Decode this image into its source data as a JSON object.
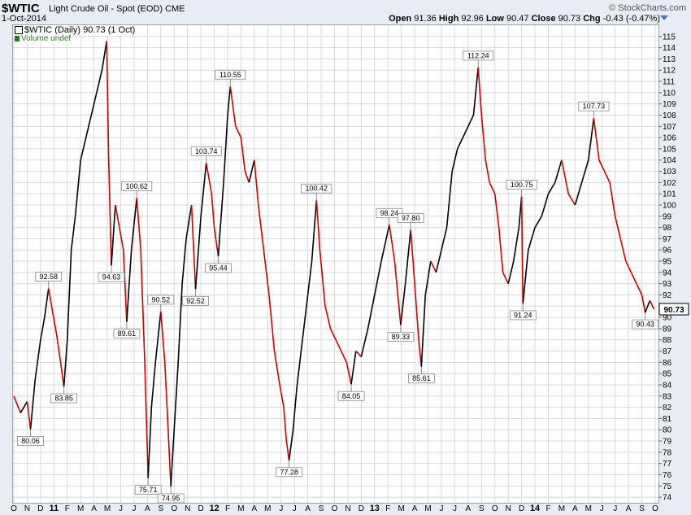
{
  "header": {
    "ticker": "$WTIC",
    "name": "Light Crude Oil - Spot (EOD)",
    "exchange": "CME",
    "date": "1-Oct-2014",
    "brand": "© StockCharts.com",
    "open_label": "Open",
    "open": "91.36",
    "high_label": "High",
    "high": "92.96",
    "low_label": "Low",
    "low": "90.47",
    "close_label": "Close",
    "close": "90.73",
    "chg_label": "Chg",
    "chg": "-0.43 (-0.47%)"
  },
  "legend": {
    "series": "$WTIC (Daily) 90.73 (1 Oct)",
    "volume": "Volume undef"
  },
  "colors": {
    "up": "#000000",
    "down": "#cc0000",
    "grid": "#d4dae2",
    "panel": "#e8edf3"
  },
  "chart_data": {
    "type": "line",
    "title": "$WTIC Light Crude Oil - Spot (EOD) CME",
    "ylim": [
      73.5,
      116
    ],
    "ytick_values": [
      74,
      75,
      76,
      77,
      78,
      79,
      80,
      81,
      82,
      83,
      84,
      85,
      86,
      87,
      88,
      89,
      90,
      91,
      92,
      93,
      94,
      95,
      96,
      97,
      98,
      99,
      100,
      101,
      102,
      103,
      104,
      105,
      106,
      107,
      108,
      109,
      110,
      111,
      112,
      113,
      114,
      115
    ],
    "x_ticks": [
      {
        "t": 0.0,
        "label": "O",
        "year": false
      },
      {
        "t": 1.0,
        "label": "N",
        "year": false
      },
      {
        "t": 2.0,
        "label": "D",
        "year": false
      },
      {
        "t": 3.0,
        "label": "11",
        "year": true
      },
      {
        "t": 4.0,
        "label": "F",
        "year": false
      },
      {
        "t": 5.0,
        "label": "M",
        "year": false
      },
      {
        "t": 6.0,
        "label": "A",
        "year": false
      },
      {
        "t": 7.0,
        "label": "M",
        "year": false
      },
      {
        "t": 8.0,
        "label": "J",
        "year": false
      },
      {
        "t": 9.0,
        "label": "J",
        "year": false
      },
      {
        "t": 10.0,
        "label": "A",
        "year": false
      },
      {
        "t": 11.0,
        "label": "S",
        "year": false
      },
      {
        "t": 12.0,
        "label": "O",
        "year": false
      },
      {
        "t": 13.0,
        "label": "N",
        "year": false
      },
      {
        "t": 14.0,
        "label": "D",
        "year": false
      },
      {
        "t": 15.0,
        "label": "12",
        "year": true
      },
      {
        "t": 16.0,
        "label": "F",
        "year": false
      },
      {
        "t": 17.0,
        "label": "M",
        "year": false
      },
      {
        "t": 18.0,
        "label": "A",
        "year": false
      },
      {
        "t": 19.0,
        "label": "M",
        "year": false
      },
      {
        "t": 20.0,
        "label": "J",
        "year": false
      },
      {
        "t": 21.0,
        "label": "J",
        "year": false
      },
      {
        "t": 22.0,
        "label": "A",
        "year": false
      },
      {
        "t": 23.0,
        "label": "S",
        "year": false
      },
      {
        "t": 24.0,
        "label": "O",
        "year": false
      },
      {
        "t": 25.0,
        "label": "N",
        "year": false
      },
      {
        "t": 26.0,
        "label": "D",
        "year": false
      },
      {
        "t": 27.0,
        "label": "13",
        "year": true
      },
      {
        "t": 28.0,
        "label": "F",
        "year": false
      },
      {
        "t": 29.0,
        "label": "M",
        "year": false
      },
      {
        "t": 30.0,
        "label": "A",
        "year": false
      },
      {
        "t": 31.0,
        "label": "M",
        "year": false
      },
      {
        "t": 32.0,
        "label": "J",
        "year": false
      },
      {
        "t": 33.0,
        "label": "J",
        "year": false
      },
      {
        "t": 34.0,
        "label": "A",
        "year": false
      },
      {
        "t": 35.0,
        "label": "S",
        "year": false
      },
      {
        "t": 36.0,
        "label": "O",
        "year": false
      },
      {
        "t": 37.0,
        "label": "N",
        "year": false
      },
      {
        "t": 38.0,
        "label": "D",
        "year": false
      },
      {
        "t": 39.0,
        "label": "14",
        "year": true
      },
      {
        "t": 40.0,
        "label": "F",
        "year": false
      },
      {
        "t": 41.0,
        "label": "M",
        "year": false
      },
      {
        "t": 42.0,
        "label": "A",
        "year": false
      },
      {
        "t": 43.0,
        "label": "M",
        "year": false
      },
      {
        "t": 44.0,
        "label": "J",
        "year": false
      },
      {
        "t": 45.0,
        "label": "J",
        "year": false
      },
      {
        "t": 46.0,
        "label": "A",
        "year": false
      },
      {
        "t": 47.0,
        "label": "S",
        "year": false
      },
      {
        "t": 48.0,
        "label": "O",
        "year": false
      }
    ],
    "annotations": [
      {
        "t": 1.25,
        "value": 80.06,
        "label": "80.06",
        "pos": "below"
      },
      {
        "t": 2.6,
        "value": 92.58,
        "label": "92.58",
        "pos": "above"
      },
      {
        "t": 3.75,
        "value": 83.85,
        "label": "83.85",
        "pos": "below"
      },
      {
        "t": 6.95,
        "value": 114.6,
        "label": "",
        "pos": "none"
      },
      {
        "t": 7.3,
        "value": 94.63,
        "label": "94.63",
        "pos": "below"
      },
      {
        "t": 8.45,
        "value": 89.61,
        "label": "89.61",
        "pos": "below"
      },
      {
        "t": 9.2,
        "value": 100.62,
        "label": "100.62",
        "pos": "above"
      },
      {
        "t": 10.05,
        "value": 75.71,
        "label": "75.71",
        "pos": "below"
      },
      {
        "t": 11.0,
        "value": 90.52,
        "label": "90.52",
        "pos": "above"
      },
      {
        "t": 11.75,
        "value": 74.95,
        "label": "74.95",
        "pos": "below"
      },
      {
        "t": 13.6,
        "value": 92.52,
        "label": "92.52",
        "pos": "below"
      },
      {
        "t": 14.4,
        "value": 103.74,
        "label": "103.74",
        "pos": "above"
      },
      {
        "t": 15.3,
        "value": 95.44,
        "label": "95.44",
        "pos": "below"
      },
      {
        "t": 16.2,
        "value": 110.55,
        "label": "110.55",
        "pos": "above"
      },
      {
        "t": 20.6,
        "value": 77.28,
        "label": "77.28",
        "pos": "below"
      },
      {
        "t": 22.65,
        "value": 100.42,
        "label": "100.42",
        "pos": "above"
      },
      {
        "t": 25.25,
        "value": 84.05,
        "label": "84.05",
        "pos": "below"
      },
      {
        "t": 28.1,
        "value": 98.24,
        "label": "98.24",
        "pos": "above"
      },
      {
        "t": 28.95,
        "value": 89.33,
        "label": "89.33",
        "pos": "below"
      },
      {
        "t": 29.7,
        "value": 97.8,
        "label": "97.80",
        "pos": "above"
      },
      {
        "t": 30.5,
        "value": 85.61,
        "label": "85.61",
        "pos": "below"
      },
      {
        "t": 34.75,
        "value": 112.24,
        "label": "112.24",
        "pos": "above"
      },
      {
        "t": 38.0,
        "value": 100.75,
        "label": "100.75",
        "pos": "above"
      },
      {
        "t": 38.1,
        "value": 91.24,
        "label": "91.24",
        "pos": "below"
      },
      {
        "t": 43.4,
        "value": 107.73,
        "label": "107.73",
        "pos": "above"
      },
      {
        "t": 47.25,
        "value": 90.43,
        "label": "90.43",
        "pos": "below"
      }
    ],
    "path": [
      [
        0.0,
        83.0
      ],
      [
        0.5,
        81.5
      ],
      [
        1.0,
        82.5
      ],
      [
        1.25,
        80.06
      ],
      [
        1.6,
        84.5
      ],
      [
        2.0,
        88.0
      ],
      [
        2.3,
        90.0
      ],
      [
        2.6,
        92.58
      ],
      [
        2.9,
        90.5
      ],
      [
        3.2,
        88.5
      ],
      [
        3.5,
        86.0
      ],
      [
        3.75,
        83.85
      ],
      [
        4.0,
        88.0
      ],
      [
        4.3,
        96.0
      ],
      [
        4.6,
        99.0
      ],
      [
        5.0,
        104.0
      ],
      [
        5.4,
        106.0
      ],
      [
        5.8,
        108.0
      ],
      [
        6.2,
        110.0
      ],
      [
        6.6,
        112.0
      ],
      [
        6.95,
        114.6
      ],
      [
        7.1,
        104.0
      ],
      [
        7.3,
        94.63
      ],
      [
        7.6,
        100.0
      ],
      [
        7.9,
        98.0
      ],
      [
        8.2,
        96.0
      ],
      [
        8.45,
        89.61
      ],
      [
        8.8,
        96.0
      ],
      [
        9.2,
        100.62
      ],
      [
        9.5,
        96.0
      ],
      [
        9.8,
        86.0
      ],
      [
        10.05,
        75.71
      ],
      [
        10.3,
        82.0
      ],
      [
        10.6,
        86.0
      ],
      [
        11.0,
        90.52
      ],
      [
        11.3,
        86.0
      ],
      [
        11.55,
        80.0
      ],
      [
        11.75,
        74.95
      ],
      [
        12.0,
        80.0
      ],
      [
        12.3,
        86.0
      ],
      [
        12.6,
        93.0
      ],
      [
        12.9,
        97.0
      ],
      [
        13.3,
        100.0
      ],
      [
        13.6,
        92.52
      ],
      [
        14.0,
        99.0
      ],
      [
        14.4,
        103.74
      ],
      [
        14.8,
        101.0
      ],
      [
        15.0,
        98.0
      ],
      [
        15.3,
        95.44
      ],
      [
        15.7,
        102.0
      ],
      [
        16.0,
        108.0
      ],
      [
        16.2,
        110.55
      ],
      [
        16.6,
        107.0
      ],
      [
        17.0,
        106.0
      ],
      [
        17.3,
        103.0
      ],
      [
        17.6,
        102.0
      ],
      [
        18.0,
        104.0
      ],
      [
        18.3,
        100.0
      ],
      [
        18.7,
        96.0
      ],
      [
        19.1,
        92.0
      ],
      [
        19.5,
        87.0
      ],
      [
        19.9,
        84.0
      ],
      [
        20.2,
        82.0
      ],
      [
        20.4,
        79.0
      ],
      [
        20.6,
        77.28
      ],
      [
        20.9,
        80.0
      ],
      [
        21.2,
        84.0
      ],
      [
        21.6,
        88.0
      ],
      [
        22.0,
        92.0
      ],
      [
        22.3,
        95.0
      ],
      [
        22.65,
        100.42
      ],
      [
        22.9,
        96.0
      ],
      [
        23.3,
        91.0
      ],
      [
        23.7,
        89.0
      ],
      [
        24.1,
        88.0
      ],
      [
        24.5,
        87.0
      ],
      [
        24.9,
        86.0
      ],
      [
        25.25,
        84.05
      ],
      [
        25.6,
        87.0
      ],
      [
        26.0,
        86.5
      ],
      [
        26.5,
        89.0
      ],
      [
        27.0,
        92.0
      ],
      [
        27.5,
        95.0
      ],
      [
        28.1,
        98.24
      ],
      [
        28.5,
        95.0
      ],
      [
        28.95,
        89.33
      ],
      [
        29.3,
        93.0
      ],
      [
        29.7,
        97.8
      ],
      [
        30.0,
        93.0
      ],
      [
        30.3,
        88.0
      ],
      [
        30.5,
        85.61
      ],
      [
        30.8,
        92.0
      ],
      [
        31.2,
        95.0
      ],
      [
        31.6,
        94.0
      ],
      [
        32.0,
        96.0
      ],
      [
        32.4,
        98.0
      ],
      [
        32.8,
        103.0
      ],
      [
        33.2,
        105.0
      ],
      [
        33.6,
        106.0
      ],
      [
        34.0,
        107.0
      ],
      [
        34.4,
        108.0
      ],
      [
        34.75,
        112.24
      ],
      [
        35.0,
        108.0
      ],
      [
        35.3,
        104.0
      ],
      [
        35.6,
        102.0
      ],
      [
        36.0,
        101.0
      ],
      [
        36.3,
        98.0
      ],
      [
        36.6,
        94.0
      ],
      [
        37.0,
        93.0
      ],
      [
        37.4,
        95.0
      ],
      [
        37.8,
        98.0
      ],
      [
        38.0,
        100.75
      ],
      [
        38.1,
        91.24
      ],
      [
        38.5,
        96.0
      ],
      [
        39.0,
        98.0
      ],
      [
        39.5,
        99.0
      ],
      [
        40.0,
        101.0
      ],
      [
        40.5,
        102.0
      ],
      [
        41.0,
        104.0
      ],
      [
        41.5,
        101.0
      ],
      [
        42.0,
        100.0
      ],
      [
        42.5,
        102.0
      ],
      [
        43.0,
        104.0
      ],
      [
        43.4,
        107.73
      ],
      [
        43.8,
        104.0
      ],
      [
        44.2,
        103.0
      ],
      [
        44.6,
        102.0
      ],
      [
        45.0,
        99.0
      ],
      [
        45.4,
        97.0
      ],
      [
        45.8,
        95.0
      ],
      [
        46.2,
        94.0
      ],
      [
        46.6,
        93.0
      ],
      [
        47.0,
        92.0
      ],
      [
        47.25,
        90.43
      ],
      [
        47.6,
        91.5
      ],
      [
        47.9,
        90.73
      ]
    ],
    "last_value": 90.73,
    "last_label": "90.73"
  }
}
